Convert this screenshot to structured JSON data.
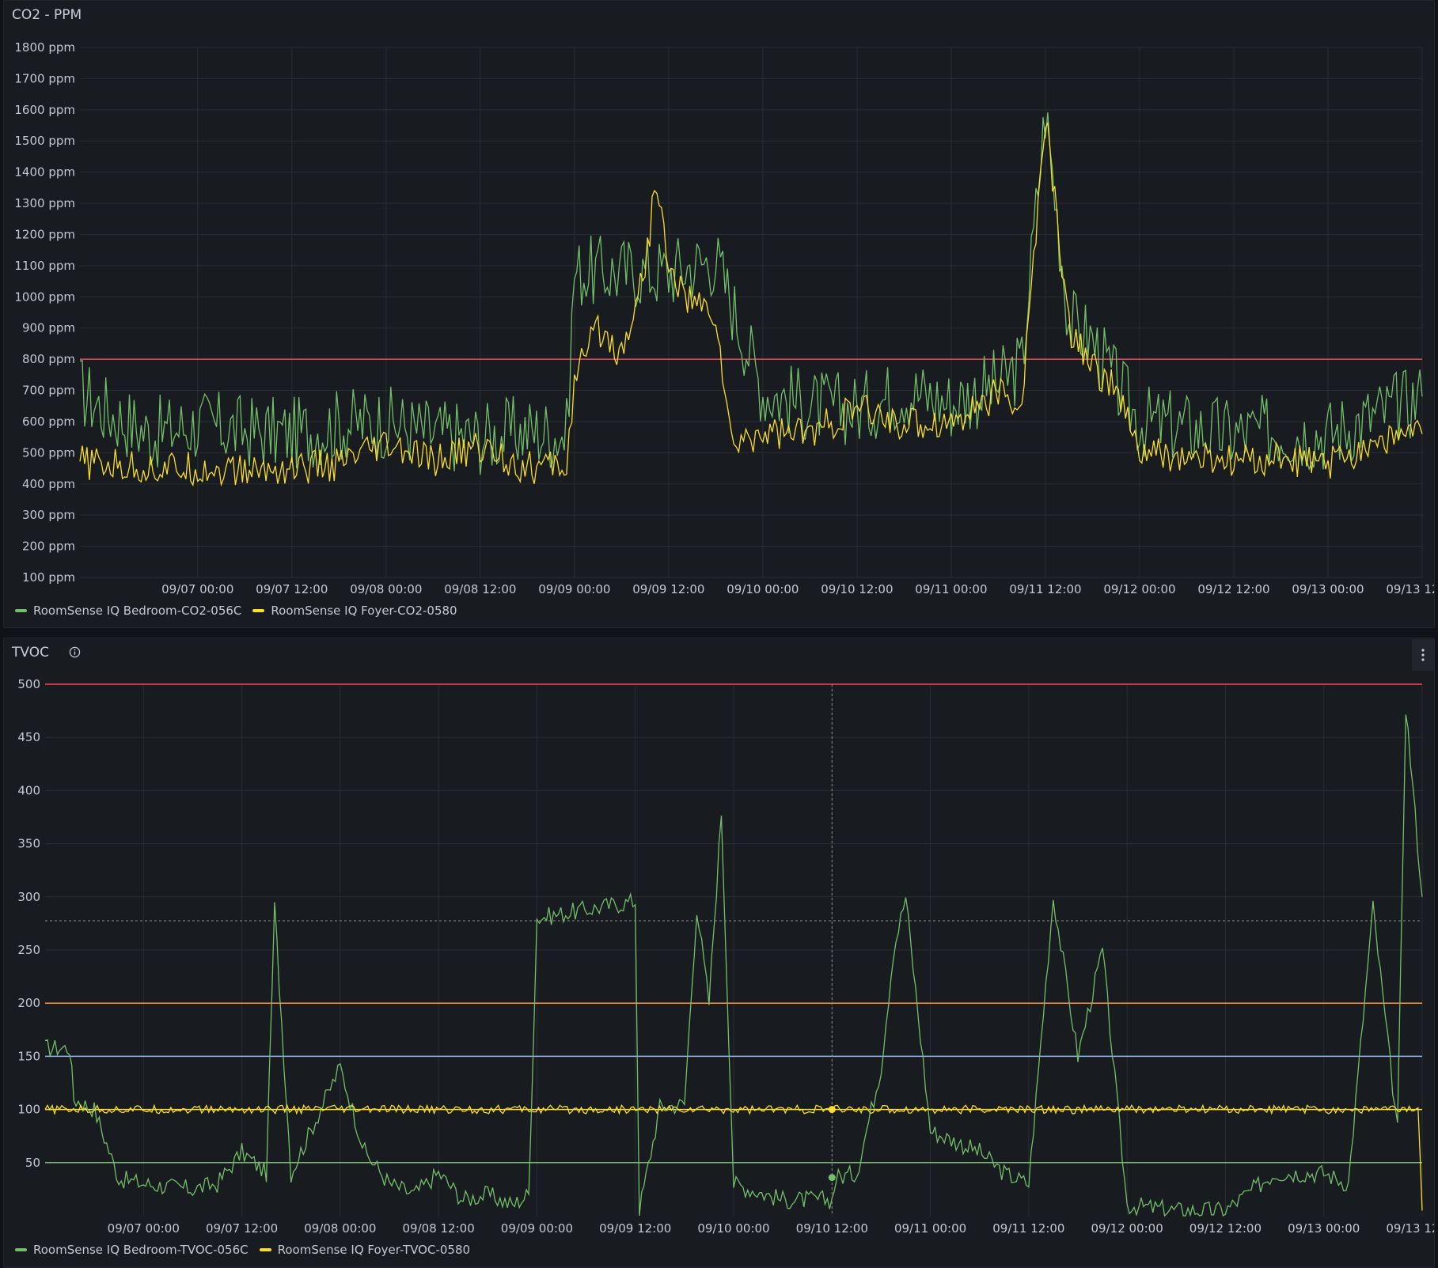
{
  "colors": {
    "green": "#73bf69",
    "yellow": "#fade2a",
    "red": "#f2495c",
    "orange": "#ff9830",
    "blue": "#8ab8ff",
    "grid": "#2a2d34",
    "hover": "#8e8e8e"
  },
  "panels": {
    "co2": {
      "title": "CO2 - PPM"
    },
    "tvoc": {
      "title": "TVOC",
      "info_icon": "info-circle-icon",
      "menu_icon": "kebab-menu-icon"
    }
  },
  "chart_data": [
    {
      "type": "line",
      "title": "CO2 - PPM",
      "xlim": [
        "09/06 09:00",
        "09/13 12:00"
      ],
      "ylim": [
        100,
        1800
      ],
      "y_tick_labels": [
        "100 ppm",
        "200 ppm",
        "300 ppm",
        "400 ppm",
        "500 ppm",
        "600 ppm",
        "700 ppm",
        "800 ppm",
        "900 ppm",
        "1000 ppm",
        "1100 ppm",
        "1200 ppm",
        "1300 ppm",
        "1400 ppm",
        "1500 ppm",
        "1600 ppm",
        "1700 ppm",
        "1800 ppm"
      ],
      "x_tick_labels": [
        "09/07 00:00",
        "09/07 12:00",
        "09/08 00:00",
        "09/08 12:00",
        "09/09 00:00",
        "09/09 12:00",
        "09/10 00:00",
        "09/10 12:00",
        "09/11 00:00",
        "09/11 12:00",
        "09/12 00:00",
        "09/12 12:00",
        "09/13 00:00",
        "09/13 12:00"
      ],
      "grid": true,
      "legend_position": "bottom-left",
      "thresholds": [
        {
          "value": 800,
          "color": "#f2495c"
        }
      ],
      "series": [
        {
          "name": "RoomSense IQ Bedroom-CO2-056C",
          "color": "#73bf69",
          "x": [
            "09/06 09:00",
            "09/06 12:00",
            "09/06 18:00",
            "09/07 00:00",
            "09/07 06:00",
            "09/07 12:00",
            "09/07 18:00",
            "09/08 00:00",
            "09/08 06:00",
            "09/08 12:00",
            "09/08 18:00",
            "09/08 23:00",
            "09/09 00:00",
            "09/09 06:00",
            "09/09 12:00",
            "09/09 18:00",
            "09/10 00:00",
            "09/10 06:00",
            "09/10 12:00",
            "09/10 18:00",
            "09/11 00:00",
            "09/11 06:00",
            "09/11 09:00",
            "09/11 12:00",
            "09/11 15:00",
            "09/11 18:00",
            "09/11 21:00",
            "09/12 00:00",
            "09/12 06:00",
            "09/12 12:00",
            "09/12 18:00",
            "09/13 00:00",
            "09/13 06:00",
            "09/13 12:00"
          ],
          "y": [
            700,
            640,
            560,
            590,
            570,
            560,
            590,
            600,
            560,
            550,
            570,
            560,
            1080,
            1080,
            1080,
            1120,
            700,
            650,
            640,
            700,
            660,
            720,
            780,
            1600,
            920,
            860,
            720,
            600,
            580,
            560,
            570,
            560,
            620,
            680
          ]
        },
        {
          "name": "RoomSense IQ Foyer-CO2-0580",
          "color": "#fade2a",
          "x": [
            "09/06 09:00",
            "09/06 12:00",
            "09/06 18:00",
            "09/07 00:00",
            "09/07 06:00",
            "09/07 12:00",
            "09/07 18:00",
            "09/08 00:00",
            "09/08 06:00",
            "09/08 12:00",
            "09/08 18:00",
            "09/08 23:00",
            "09/09 00:00",
            "09/09 03:00",
            "09/09 06:00",
            "09/09 09:00",
            "09/09 10:30",
            "09/09 12:00",
            "09/09 15:00",
            "09/09 18:00",
            "09/09 20:00",
            "09/10 00:00",
            "09/10 06:00",
            "09/10 12:00",
            "09/10 18:00",
            "09/11 00:00",
            "09/11 06:00",
            "09/11 09:00",
            "09/11 12:00",
            "09/11 15:00",
            "09/11 18:00",
            "09/11 21:00",
            "09/12 00:00",
            "09/12 06:00",
            "09/12 12:00",
            "09/12 18:00",
            "09/13 00:00",
            "09/13 06:00",
            "09/13 12:00"
          ],
          "y": [
            470,
            460,
            450,
            450,
            440,
            450,
            460,
            520,
            470,
            520,
            450,
            460,
            730,
            900,
            820,
            1100,
            1380,
            1080,
            980,
            940,
            520,
            570,
            560,
            640,
            590,
            600,
            690,
            650,
            1580,
            900,
            780,
            700,
            500,
            480,
            470,
            480,
            460,
            540,
            560
          ]
        }
      ]
    },
    {
      "type": "line",
      "title": "TVOC",
      "xlim": [
        "09/06 12:00",
        "09/13 12:00"
      ],
      "ylim": [
        0,
        500
      ],
      "y_tick_labels": [
        "50",
        "100",
        "150",
        "200",
        "250",
        "300",
        "350",
        "400",
        "450",
        "500"
      ],
      "x_tick_labels": [
        "09/07 00:00",
        "09/07 12:00",
        "09/08 00:00",
        "09/08 12:00",
        "09/09 00:00",
        "09/09 12:00",
        "09/10 00:00",
        "09/10 12:00",
        "09/11 00:00",
        "09/11 12:00",
        "09/12 00:00",
        "09/12 12:00",
        "09/13 00:00",
        "09/13 12:00"
      ],
      "grid": true,
      "legend_position": "bottom-left",
      "hover_x": "09/10 12:00",
      "thresholds": [
        {
          "value": 500,
          "color": "#f2495c"
        },
        {
          "value": 200,
          "color": "#ff9830"
        },
        {
          "value": 150,
          "color": "#8ab8ff"
        },
        {
          "value": 100,
          "color": "#fade2a"
        },
        {
          "value": 50,
          "color": "#73bf69"
        }
      ],
      "series": [
        {
          "name": "RoomSense IQ Bedroom-TVOC-056C",
          "color": "#73bf69",
          "x": [
            "09/06 12:00",
            "09/06 15:00",
            "09/06 15:30",
            "09/06 18:00",
            "09/06 21:00",
            "09/07 00:00",
            "09/07 06:00",
            "09/07 09:00",
            "09/07 12:00",
            "09/07 15:00",
            "09/07 16:00",
            "09/07 18:00",
            "09/07 21:00",
            "09/08 00:00",
            "09/08 03:00",
            "09/08 06:00",
            "09/08 09:00",
            "09/08 12:00",
            "09/08 15:00",
            "09/08 18:00",
            "09/08 21:00",
            "09/08 23:00",
            "09/09 00:00",
            "09/09 12:00",
            "09/09 12:30",
            "09/09 15:00",
            "09/09 18:00",
            "09/09 19:30",
            "09/09 21:00",
            "09/09 22:30",
            "09/10 00:00",
            "09/10 06:00",
            "09/10 12:00",
            "09/10 12:30",
            "09/10 15:00",
            "09/10 18:00",
            "09/10 19:30",
            "09/10 21:00",
            "09/11 00:00",
            "09/11 06:00",
            "09/11 09:00",
            "09/11 12:00",
            "09/11 15:00",
            "09/11 18:00",
            "09/11 21:00",
            "09/12 00:00",
            "09/12 06:00",
            "09/12 12:00",
            "09/12 18:00",
            "09/13 00:00",
            "09/13 03:00",
            "09/13 06:00",
            "09/13 09:00",
            "09/13 10:00",
            "09/13 12:00"
          ],
          "y": [
            158,
            158,
            110,
            100,
            35,
            30,
            25,
            30,
            60,
            40,
            290,
            40,
            90,
            140,
            60,
            30,
            20,
            40,
            15,
            20,
            10,
            20,
            280,
            296,
            5,
            102,
            105,
            290,
            200,
            380,
            30,
            15,
            15,
            36,
            40,
            140,
            250,
            300,
            80,
            60,
            40,
            30,
            300,
            150,
            250,
            10,
            5,
            5,
            40,
            40,
            30,
            290,
            80,
            480,
            300
          ]
        },
        {
          "name": "RoomSense IQ Foyer-TVOC-0580",
          "color": "#fade2a",
          "x": [
            "09/06 12:00",
            "09/13 11:00",
            "09/13 11:30",
            "09/13 12:00"
          ],
          "y": [
            100,
            100,
            100,
            5
          ]
        }
      ]
    }
  ]
}
